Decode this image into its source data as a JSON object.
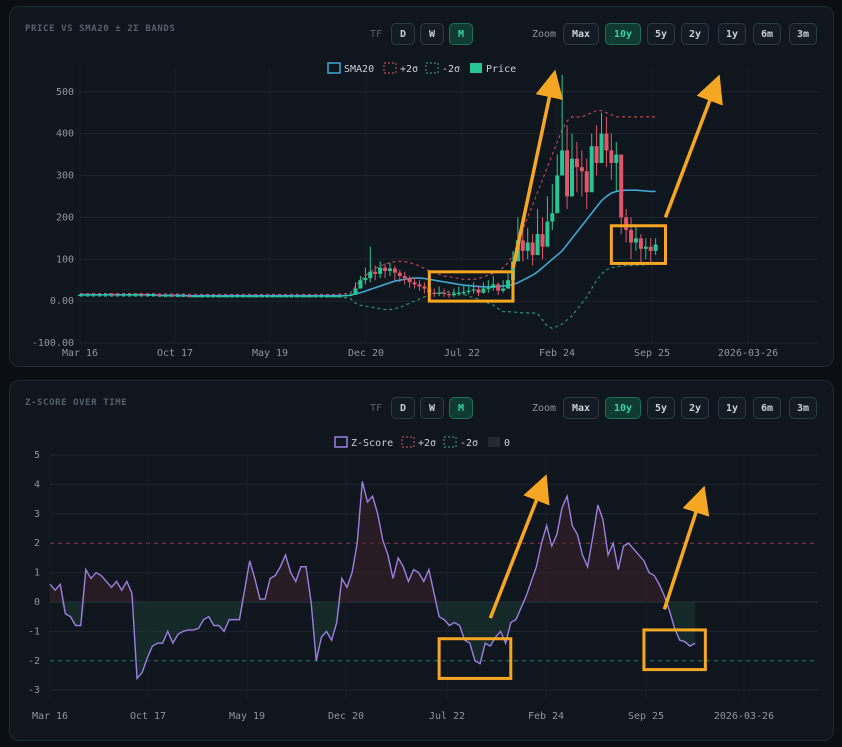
{
  "chart_data": [
    {
      "type": "candlestick",
      "title": "PRICE VS SMA20 ± 2Σ BANDS",
      "ylim": [
        -100,
        540
      ],
      "y_ticks": [
        "500",
        "400",
        "300",
        "200",
        "100",
        "0.00",
        "-100.00"
      ],
      "y_tick_values": [
        500,
        400,
        300,
        200,
        100,
        0,
        -100
      ],
      "x_ticks": [
        "Mar 16",
        "Oct 17",
        "May 19",
        "Dec 20",
        "Jul 22",
        "Feb 24",
        "Sep 25",
        "2026-03-26"
      ],
      "legend": [
        "SMA20",
        "+2σ",
        "-2σ",
        "Price"
      ],
      "colors": {
        "sma": "#3fa7d6",
        "upper": "#b8465a",
        "lower": "#2f8e73",
        "up": "#26c795",
        "down": "#e0566c",
        "highlight": "#f5a623"
      },
      "x": [
        0,
        1,
        2,
        3,
        4,
        5,
        6,
        7,
        8,
        9,
        10,
        11,
        12,
        13,
        14,
        15,
        16,
        17,
        18,
        19,
        20,
        21,
        22,
        23,
        24,
        25,
        26,
        27,
        28,
        29,
        30,
        31,
        32,
        33,
        34,
        35,
        36,
        37,
        38,
        39,
        40,
        41,
        42,
        43,
        44,
        45,
        46,
        47,
        48,
        49,
        50,
        51,
        52,
        53,
        54,
        55,
        56,
        57,
        58,
        59,
        60,
        61,
        62,
        63,
        64,
        65,
        66,
        67,
        68,
        69,
        70,
        71,
        72,
        73,
        74,
        75,
        76,
        77,
        78,
        79,
        80,
        81,
        82,
        83,
        84,
        85,
        86,
        87,
        88,
        89,
        90,
        91,
        92,
        93,
        94,
        95,
        96,
        97,
        98,
        99,
        100,
        101,
        102,
        103,
        104,
        105,
        106,
        107,
        108,
        109,
        110,
        111,
        112,
        113,
        114,
        115,
        116,
        117
      ],
      "close": [
        15,
        16,
        16,
        16,
        16,
        17,
        17,
        16,
        16,
        16,
        16,
        16,
        16,
        15,
        15,
        15,
        14,
        14,
        14,
        13,
        13,
        13,
        12,
        12,
        12,
        12,
        12,
        12,
        12,
        12,
        12,
        12,
        12,
        12,
        12,
        12,
        12,
        12,
        12,
        12,
        12,
        12,
        12,
        12,
        12,
        12,
        12,
        12,
        12,
        12,
        12,
        12,
        12,
        13,
        14,
        15,
        30,
        50,
        55,
        70,
        65,
        80,
        72,
        78,
        68,
        60,
        55,
        45,
        40,
        35,
        30,
        20,
        18,
        20,
        17,
        14,
        18,
        20,
        22,
        25,
        28,
        20,
        30,
        32,
        40,
        25,
        30,
        50,
        95,
        145,
        120,
        140,
        110,
        160,
        130,
        190,
        210,
        300,
        360,
        250,
        340,
        320,
        310,
        260,
        370,
        330,
        400,
        360,
        330,
        350,
        200,
        170,
        140,
        150,
        125,
        130,
        120,
        135
      ],
      "high": [
        17,
        18,
        18,
        18,
        18,
        19,
        19,
        18,
        18,
        18,
        18,
        18,
        18,
        17,
        17,
        17,
        16,
        16,
        16,
        15,
        15,
        15,
        14,
        14,
        14,
        14,
        14,
        14,
        14,
        14,
        14,
        14,
        14,
        14,
        14,
        14,
        14,
        14,
        14,
        14,
        14,
        14,
        14,
        14,
        14,
        14,
        14,
        14,
        14,
        14,
        14,
        14,
        15,
        16,
        17,
        20,
        45,
        60,
        80,
        130,
        85,
        95,
        90,
        92,
        85,
        75,
        70,
        60,
        55,
        50,
        45,
        35,
        30,
        35,
        30,
        25,
        30,
        35,
        38,
        40,
        45,
        35,
        45,
        50,
        60,
        45,
        50,
        70,
        120,
        200,
        180,
        175,
        160,
        220,
        200,
        250,
        280,
        350,
        540,
        420,
        400,
        380,
        360,
        340,
        400,
        420,
        450,
        440,
        400,
        380,
        260,
        220,
        200,
        180,
        160,
        150,
        150,
        150
      ],
      "low": [
        13,
        14,
        14,
        14,
        14,
        15,
        15,
        14,
        14,
        14,
        14,
        14,
        14,
        13,
        13,
        13,
        12,
        12,
        12,
        11,
        11,
        11,
        10,
        10,
        10,
        10,
        10,
        10,
        10,
        10,
        10,
        10,
        10,
        10,
        10,
        10,
        10,
        10,
        10,
        10,
        10,
        10,
        10,
        10,
        10,
        10,
        10,
        10,
        10,
        10,
        10,
        10,
        11,
        11,
        12,
        12,
        18,
        30,
        40,
        45,
        50,
        55,
        55,
        60,
        50,
        45,
        40,
        32,
        30,
        25,
        18,
        12,
        10,
        12,
        10,
        8,
        10,
        12,
        15,
        16,
        18,
        12,
        18,
        20,
        25,
        15,
        20,
        35,
        60,
        100,
        95,
        100,
        85,
        120,
        100,
        150,
        170,
        240,
        300,
        220,
        280,
        260,
        250,
        220,
        300,
        300,
        340,
        320,
        290,
        260,
        160,
        140,
        100,
        120,
        90,
        100,
        90,
        110
      ],
      "sma20": [
        15,
        15,
        15,
        15,
        15,
        15,
        15,
        15,
        15,
        15,
        15,
        15,
        15,
        15,
        15,
        15,
        14,
        14,
        14,
        14,
        14,
        14,
        13,
        13,
        13,
        13,
        13,
        13,
        13,
        13,
        13,
        13,
        13,
        13,
        13,
        13,
        13,
        13,
        13,
        13,
        13,
        13,
        13,
        13,
        13,
        13,
        13,
        13,
        13,
        13,
        13,
        13,
        13,
        13,
        13,
        14,
        18,
        20,
        24,
        28,
        32,
        36,
        40,
        44,
        48,
        50,
        52,
        54,
        55,
        55,
        54,
        52,
        50,
        48,
        46,
        44,
        42,
        40,
        38,
        37,
        36,
        35,
        34,
        34,
        34,
        35,
        36,
        37,
        40,
        44,
        50,
        56,
        62,
        70,
        80,
        90,
        100,
        110,
        120,
        135,
        150,
        165,
        180,
        195,
        210,
        225,
        240,
        250,
        258,
        262,
        264,
        265,
        265,
        265,
        264,
        263,
        262,
        262
      ],
      "upper": [
        18,
        18,
        18,
        18,
        18,
        18,
        18,
        18,
        18,
        18,
        18,
        18,
        18,
        18,
        18,
        18,
        17,
        17,
        17,
        17,
        17,
        17,
        16,
        16,
        16,
        16,
        16,
        16,
        16,
        16,
        16,
        16,
        16,
        16,
        16,
        16,
        16,
        16,
        16,
        16,
        16,
        16,
        16,
        16,
        16,
        16,
        16,
        16,
        16,
        16,
        16,
        16,
        16,
        17,
        18,
        20,
        35,
        50,
        60,
        70,
        78,
        84,
        88,
        92,
        94,
        95,
        94,
        92,
        88,
        84,
        78,
        72,
        68,
        64,
        60,
        58,
        56,
        54,
        52,
        52,
        52,
        54,
        58,
        62,
        66,
        72,
        80,
        92,
        110,
        140,
        170,
        200,
        230,
        260,
        290,
        320,
        350,
        380,
        410,
        430,
        440,
        440,
        440,
        445,
        450,
        455,
        455,
        450,
        445,
        440,
        440,
        440,
        440,
        440,
        440,
        440,
        440,
        440
      ],
      "lower": [
        12,
        12,
        12,
        12,
        12,
        12,
        12,
        12,
        12,
        12,
        12,
        12,
        12,
        12,
        12,
        12,
        11,
        11,
        11,
        11,
        11,
        11,
        10,
        10,
        10,
        10,
        10,
        10,
        10,
        10,
        10,
        10,
        10,
        10,
        10,
        10,
        10,
        10,
        10,
        10,
        10,
        10,
        10,
        10,
        10,
        10,
        10,
        10,
        10,
        10,
        10,
        10,
        10,
        9,
        8,
        6,
        -5,
        -10,
        -12,
        -14,
        -16,
        -18,
        -20,
        -20,
        -18,
        -15,
        -10,
        -5,
        0,
        5,
        10,
        15,
        18,
        20,
        22,
        22,
        20,
        18,
        16,
        12,
        8,
        5,
        0,
        -5,
        -10,
        -18,
        -25,
        -25,
        -26,
        -27,
        -28,
        -28,
        -28,
        -30,
        -45,
        -60,
        -65,
        -60,
        -55,
        -45,
        -35,
        -20,
        -5,
        10,
        30,
        50,
        65,
        75,
        80,
        82,
        84,
        85,
        85,
        86,
        86,
        87,
        88,
        88
      ],
      "highlight_boxes": [
        {
          "x0": 71,
          "x1": 88,
          "y0": 0,
          "y1": 70
        },
        {
          "x0": 108,
          "x1": 119,
          "y0": 90,
          "y1": 180
        }
      ],
      "arrows": [
        {
          "x0": 88,
          "y0": 78,
          "x1": 96,
          "y1": 520
        },
        {
          "x0": 119,
          "y0": 200,
          "x1": 129,
          "y1": 510
        }
      ]
    },
    {
      "type": "line",
      "title": "Z-SCORE OVER TIME",
      "ylim": [
        -3.3,
        5
      ],
      "y_ticks": [
        "5",
        "4",
        "3",
        "2",
        "1",
        "0",
        "-1",
        "-2",
        "-3"
      ],
      "y_tick_values": [
        5,
        4,
        3,
        2,
        1,
        0,
        -1,
        -2,
        -3
      ],
      "x_ticks": [
        "Mar 16",
        "Oct 17",
        "May 19",
        "Dec 20",
        "Jul 22",
        "Feb 24",
        "Sep 25",
        "2026-03-26"
      ],
      "legend": [
        "Z-Score",
        "+2σ",
        "-2σ",
        "0"
      ],
      "colors": {
        "z": "#9b7fe0",
        "upper": "#b8465a",
        "lower": "#2f8e73",
        "highlight": "#f5a623"
      },
      "x": [
        0,
        1,
        2,
        3,
        4,
        5,
        6,
        7,
        8,
        9,
        10,
        11,
        12,
        13,
        14,
        15,
        16,
        17,
        18,
        19,
        20,
        21,
        22,
        23,
        24,
        25,
        26,
        27,
        28,
        29,
        30,
        31,
        32,
        33,
        34,
        35,
        36,
        37,
        38,
        39,
        40,
        41,
        42,
        43,
        44,
        45,
        46,
        47,
        48,
        49,
        50,
        51,
        52,
        53,
        54,
        55,
        56,
        57,
        58,
        59,
        60,
        61,
        62,
        63,
        64,
        65,
        66,
        67,
        68,
        69,
        70,
        71,
        72,
        73,
        74,
        75,
        76,
        77,
        78,
        79,
        80,
        81,
        82,
        83,
        84,
        85,
        86,
        87,
        88,
        89,
        90,
        91,
        92,
        93,
        94,
        95,
        96,
        97,
        98,
        99,
        100,
        101,
        102,
        103,
        104,
        105,
        106,
        107,
        108,
        109,
        110,
        111,
        112
      ],
      "z": [
        0.6,
        0.4,
        0.6,
        -0.4,
        -0.5,
        -0.8,
        -0.8,
        1.1,
        0.8,
        1.0,
        0.9,
        0.7,
        0.5,
        0.7,
        0.4,
        0.7,
        0.3,
        -2.6,
        -2.4,
        -1.9,
        -1.5,
        -1.4,
        -1.4,
        -1.0,
        -1.4,
        -1.1,
        -1.0,
        -0.95,
        -0.95,
        -0.9,
        -0.6,
        -0.5,
        -0.8,
        -0.8,
        -1.0,
        -0.6,
        -0.6,
        -0.6,
        0.4,
        1.4,
        0.8,
        0.1,
        0.1,
        0.8,
        0.9,
        1.2,
        1.6,
        1.0,
        0.7,
        1.2,
        1.2,
        0.0,
        -2.0,
        -1.2,
        -1.0,
        -1.3,
        -0.7,
        0.8,
        0.5,
        1.0,
        2.0,
        4.1,
        3.4,
        3.6,
        3.0,
        2.1,
        1.6,
        0.8,
        1.5,
        1.2,
        0.7,
        1.1,
        1.0,
        0.7,
        1.1,
        0.3,
        -0.5,
        -0.6,
        -0.8,
        -0.7,
        -0.8,
        -1.3,
        -1.4,
        -2.0,
        -2.1,
        -1.4,
        -1.5,
        -1.2,
        -1.0,
        -1.4,
        -0.7,
        -0.6,
        -0.2,
        0.2,
        0.7,
        1.2,
        2.0,
        2.6,
        1.9,
        2.3,
        3.2,
        3.6,
        2.6,
        2.3,
        1.6,
        1.2,
        2.2,
        3.3,
        2.8,
        1.6,
        2.0,
        1.1,
        1.9
      ],
      "z_tail": [
        2.0,
        1.8,
        1.6,
        1.4,
        1.0,
        0.9,
        0.6,
        0.2,
        -0.3,
        -0.9,
        -1.3,
        -1.35,
        -1.5,
        -1.4
      ],
      "highlight_boxes": [
        {
          "x0": 76,
          "x1": 90,
          "y0": -2.6,
          "y1": -1.25
        },
        {
          "x0": 116,
          "x1": 128,
          "y0": -2.3,
          "y1": -0.95
        }
      ],
      "arrows": [
        {
          "x0": 86,
          "y0": -0.55,
          "x1": 96,
          "y1": 3.9
        },
        {
          "x0": 120,
          "y0": -0.25,
          "x1": 127,
          "y1": 3.5
        }
      ]
    }
  ],
  "toolbar": {
    "tf_label": "TF",
    "tf_buttons": [
      "D",
      "W",
      "M"
    ],
    "tf_active": "M",
    "zoom_label": "Zoom",
    "zoom_buttons": [
      "Max",
      "10y",
      "5y",
      "2y",
      "1y",
      "6m",
      "3m"
    ],
    "zoom_active": "10y"
  }
}
